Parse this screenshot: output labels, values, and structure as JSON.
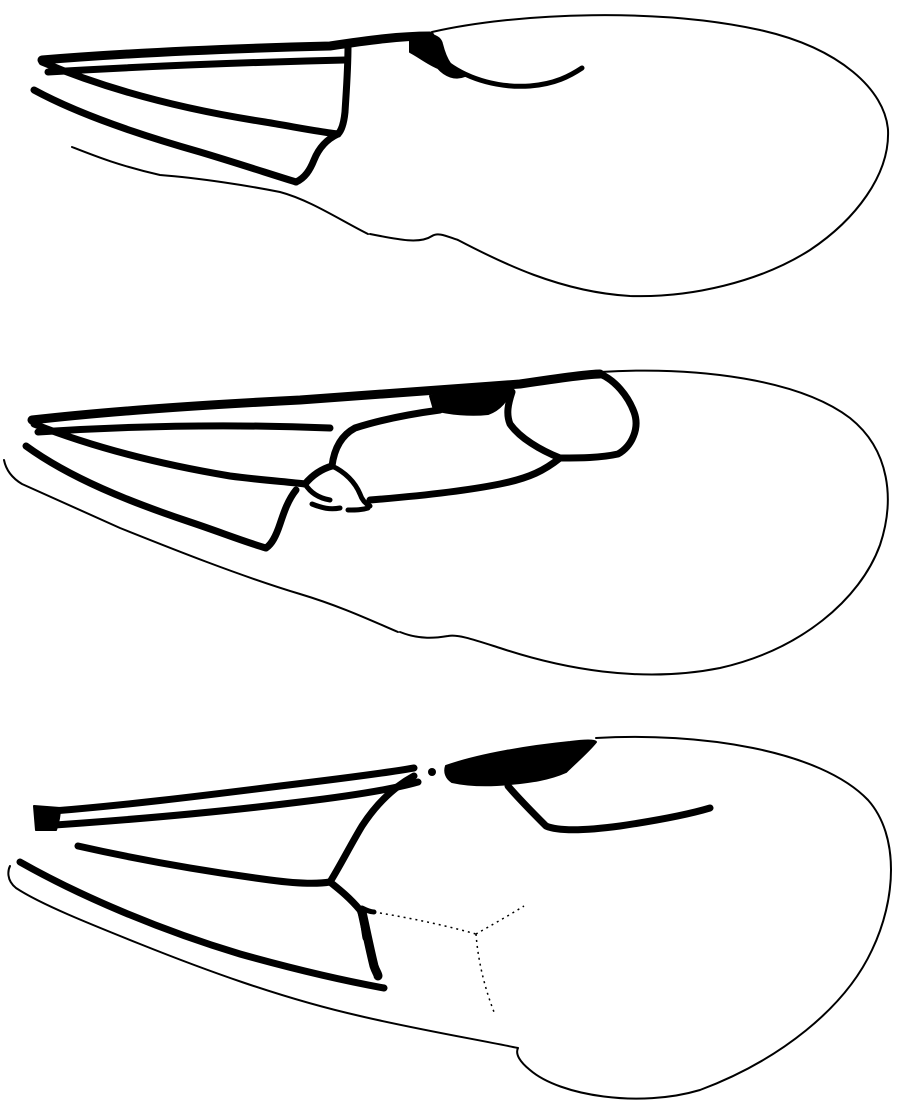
{
  "figure": {
    "panels": [
      {
        "id": "wing-1",
        "description_icon": "insect-wing-icon"
      },
      {
        "id": "wing-2",
        "description_icon": "insect-wing-icon"
      },
      {
        "id": "wing-3",
        "description_icon": "insect-wing-icon"
      }
    ],
    "colors": {
      "background": "#ffffff",
      "ink": "#000000"
    }
  }
}
